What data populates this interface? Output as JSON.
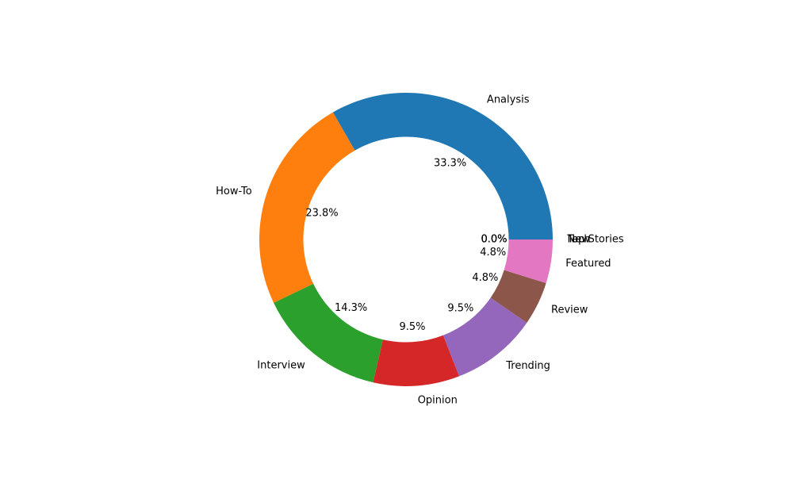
{
  "chart_data": {
    "type": "pie",
    "variant": "donut",
    "title": "",
    "start_angle_deg": 0,
    "direction": "counterclockwise",
    "hole_ratio": 0.7,
    "slices": [
      {
        "label": "Analysis",
        "value": 33.3,
        "pct_label": "33.3%",
        "color": "#1f77b4"
      },
      {
        "label": "How-To",
        "value": 23.8,
        "pct_label": "23.8%",
        "color": "#ff7f0e"
      },
      {
        "label": "Interview",
        "value": 14.3,
        "pct_label": "14.3%",
        "color": "#2ca02c"
      },
      {
        "label": "Opinion",
        "value": 9.5,
        "pct_label": "9.5%",
        "color": "#d62728"
      },
      {
        "label": "Trending",
        "value": 9.5,
        "pct_label": "9.5%",
        "color": "#9467bd"
      },
      {
        "label": "Review",
        "value": 4.8,
        "pct_label": "4.8%",
        "color": "#8c564b"
      },
      {
        "label": "Featured",
        "value": 4.8,
        "pct_label": "4.8%",
        "color": "#e377c2"
      },
      {
        "label": "New",
        "value": 0,
        "pct_label": "0.0%",
        "color": "#7f7f7f"
      },
      {
        "label": "Top Stories",
        "value": 0,
        "pct_label": "0.0%",
        "color": "#bcbd22"
      },
      {
        "label": "Tech",
        "value": 0,
        "pct_label": "0.0%",
        "color": "#17becf"
      }
    ]
  }
}
